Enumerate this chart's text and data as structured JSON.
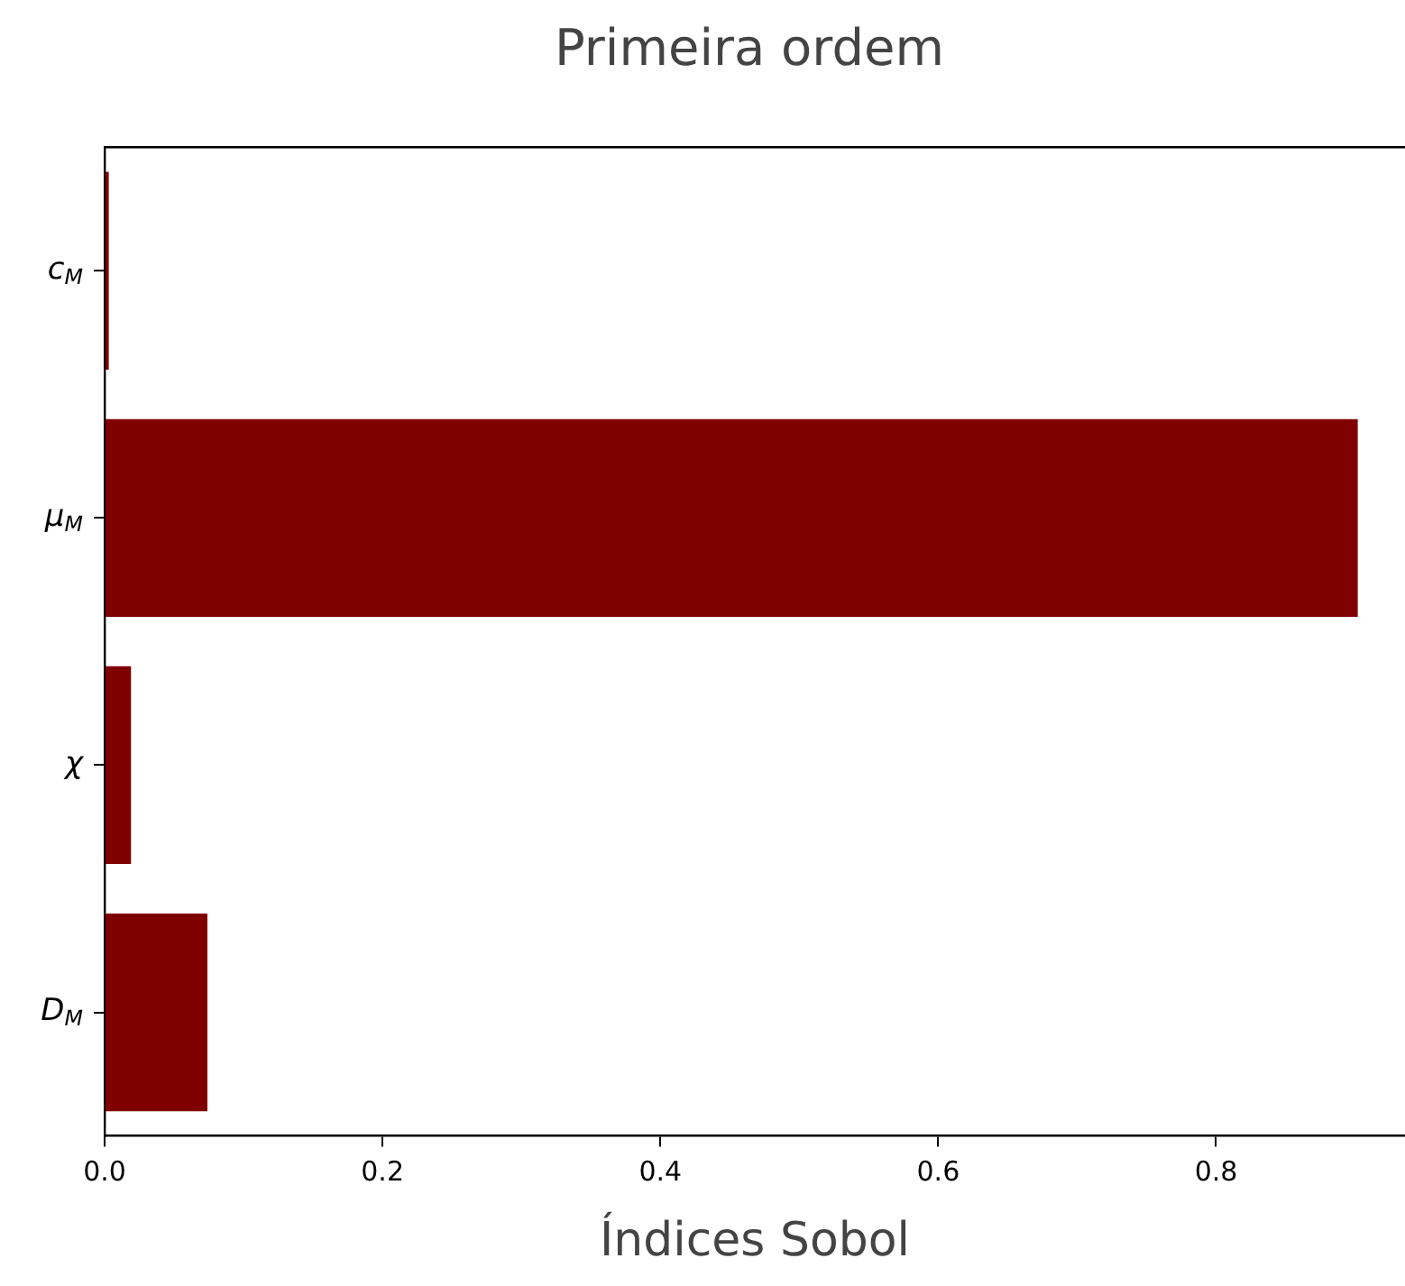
{
  "chart_data": {
    "type": "bar",
    "orientation": "horizontal",
    "title": "Primeira ordem",
    "xlabel": "Índices Sobol",
    "categories": [
      "c$_{M}$",
      "μ$_{M}$",
      "χ",
      "D$_{M}$"
    ],
    "values": [
      0.003,
      0.902,
      0.019,
      0.074
    ],
    "color": "#800000",
    "xlim": [
      0,
      0.936
    ],
    "xticks": [
      {
        "value": 0,
        "label": "0.0"
      },
      {
        "value": 0.2,
        "label": "0.2"
      },
      {
        "value": 0.4,
        "label": "0.4"
      },
      {
        "value": 0.6,
        "label": "0.6"
      },
      {
        "value": 0.8,
        "label": "0.8"
      }
    ],
    "grid": false,
    "legend": false
  }
}
